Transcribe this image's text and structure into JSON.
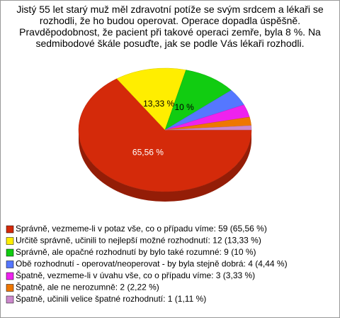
{
  "chart_data": {
    "type": "pie",
    "title": "Jistý 55 let starý muž měl zdravotní potíže se svým srdcem a lékaři se rozhodli, že ho budou operovat. Operace dopadla úspěšně. Pravděpodobnost, že pacient při takové operaci zemře, byla 8 %. Na sedmibodové škále posuďte, jak se podle Vás lékaři rozhodli.",
    "categories": [
      "Správně, vezmeme-li v potaz vše, co o případu víme: 59 (65,56 %)",
      "Určitě správně, učinili to nejlepší možné rozhodnutí: 12 (13,33 %)",
      "Správně, ale opačné rozhodnutí by bylo také rozumné: 9 (10 %)",
      "Obě rozhodnutí - operovat/neoperovat - by byla stejně dobrá: 4 (4,44 %)",
      "Špatně, vezmeme-li v úvahu vše, co o případu víme: 3 (3,33 %)",
      "Špatně, ale ne nerozumně: 2 (2,22 %)",
      "Špatně, učinili velice špatné rozhodnutí: 1 (1,11 %)"
    ],
    "values": [
      65.56,
      13.33,
      10,
      4.44,
      3.33,
      2.22,
      1.11
    ],
    "value_labels": [
      "65,56 %",
      "13,33 %",
      "10 %",
      null,
      null,
      null,
      null
    ],
    "colors": [
      "#d42a0a",
      "#ffee00",
      "#11cc11",
      "#5577ff",
      "#ee22ee",
      "#ee7700",
      "#cc88cc"
    ]
  }
}
